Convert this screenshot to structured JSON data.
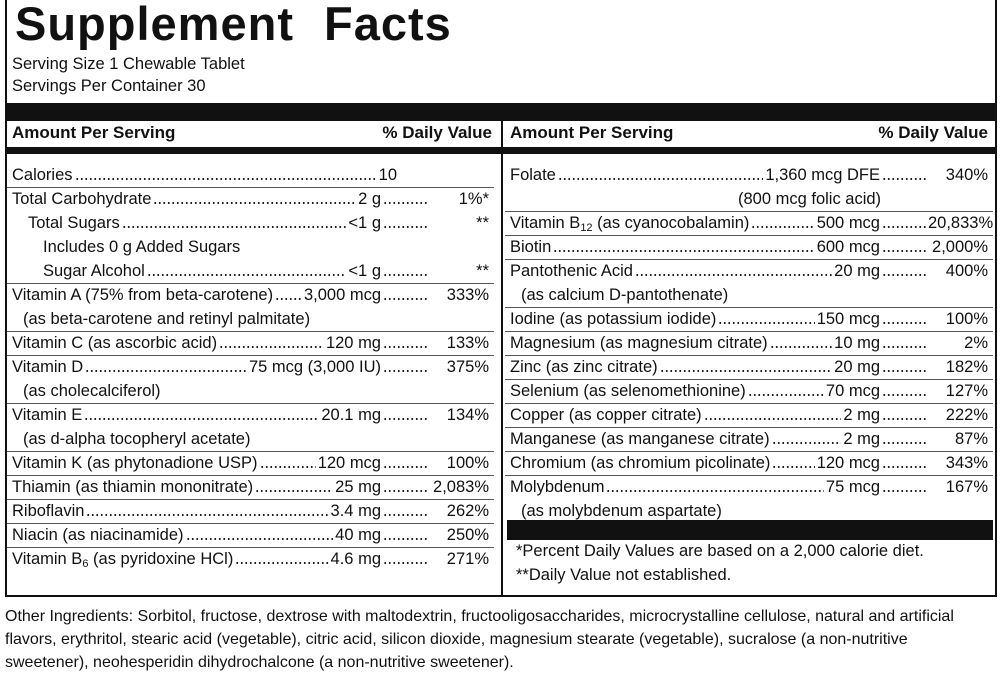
{
  "title": "Supplement Facts",
  "serving_size": "Serving Size 1 Chewable Tablet",
  "servings_per_container": "Servings Per Container 30",
  "left": {
    "header": {
      "amount": "Amount Per Serving",
      "dv": "% Daily Value"
    },
    "rows": [
      {
        "label": "Calories",
        "amount": "10"
      },
      {
        "label": "Total Carbohydrate",
        "amount": "2 g",
        "dv": "1%*"
      },
      {
        "label": "Total Sugars",
        "amount": "<1 g",
        "dv": "**"
      },
      {
        "label": "Includes 0 g Added Sugars"
      },
      {
        "label": "Sugar Alcohol",
        "amount": "<1 g",
        "dv": "**"
      },
      {
        "label": "Vitamin A (75% from beta-carotene)",
        "amount": "3,000 mcg",
        "dv": "333%",
        "note": "(as beta-carotene and retinyl palmitate)"
      },
      {
        "label": "Vitamin C (as ascorbic acid)",
        "amount": "120 mg",
        "dv": "133%"
      },
      {
        "label": "Vitamin D",
        "amount": "75 mcg (3,000 IU)",
        "dv": "375%",
        "note": "(as cholecalciferol)"
      },
      {
        "label": "Vitamin E",
        "amount": "20.1 mg",
        "dv": "134%",
        "note": "(as d-alpha tocopheryl acetate)"
      },
      {
        "label": "Vitamin K (as phytonadione USP)",
        "amount": "120 mcg",
        "dv": "100%"
      },
      {
        "label": "Thiamin (as thiamin mononitrate)",
        "amount": "25 mg",
        "dv": "2,083%"
      },
      {
        "label": "Riboflavin",
        "amount": "3.4 mg",
        "dv": "262%"
      },
      {
        "label": "Niacin (as niacinamide)",
        "amount": "40 mg",
        "dv": "250%"
      },
      {
        "label": "Vitamin B",
        "sub": "6",
        "label_rest": " (as pyridoxine HCl)",
        "amount": "4.6 mg",
        "dv": "271%"
      }
    ]
  },
  "right": {
    "header": {
      "amount": "Amount Per Serving",
      "dv": "% Daily Value"
    },
    "rows": [
      {
        "label": "Folate",
        "amount": "1,360 mcg DFE",
        "dv": "340%",
        "note": "(800 mcg folic acid)"
      },
      {
        "label": "Vitamin B",
        "sub": "12",
        "label_rest": " (as cyanocobalamin)",
        "amount": "500 mcg",
        "dv": "20,833%"
      },
      {
        "label": "Biotin",
        "amount": "600 mcg",
        "dv": "2,000%"
      },
      {
        "label": "Pantothenic Acid",
        "amount": "20 mg",
        "dv": "400%",
        "note": "(as calcium D-pantothenate)"
      },
      {
        "label": "Iodine (as potassium iodide)",
        "amount": "150 mcg",
        "dv": "100%"
      },
      {
        "label": "Magnesium (as magnesium citrate)",
        "amount": "10 mg",
        "dv": "2%"
      },
      {
        "label": "Zinc (as zinc citrate)",
        "amount": "20 mg",
        "dv": "182%"
      },
      {
        "label": "Selenium (as selenomethionine)",
        "amount": "70 mcg",
        "dv": "127%"
      },
      {
        "label": "Copper (as copper citrate)",
        "amount": "2 mg",
        "dv": "222%"
      },
      {
        "label": "Manganese (as manganese citrate)",
        "amount": "2 mg",
        "dv": "87%"
      },
      {
        "label": "Chromium (as chromium picolinate)",
        "amount": "120 mcg",
        "dv": "343%"
      },
      {
        "label": "Molybdenum",
        "amount": "75 mcg",
        "dv": "167%",
        "note": "(as molybdenum aspartate)"
      }
    ]
  },
  "footnotes": [
    "*Percent Daily Values are based on a 2,000 calorie diet.",
    "**Daily Value not established."
  ],
  "other_ingredients": "Other Ingredients: Sorbitol, fructose, dextrose with maltodextrin, fructooligosaccharides, microcrystalline cellulose, natural and artificial flavors, erythritol, stearic acid (vegetable), citric acid, silicon dioxide, magnesium stearate (vegetable), sucralose (a non-nutritive sweetener), neohesperidin dihydrochalcone (a non-nutritive sweetener)."
}
